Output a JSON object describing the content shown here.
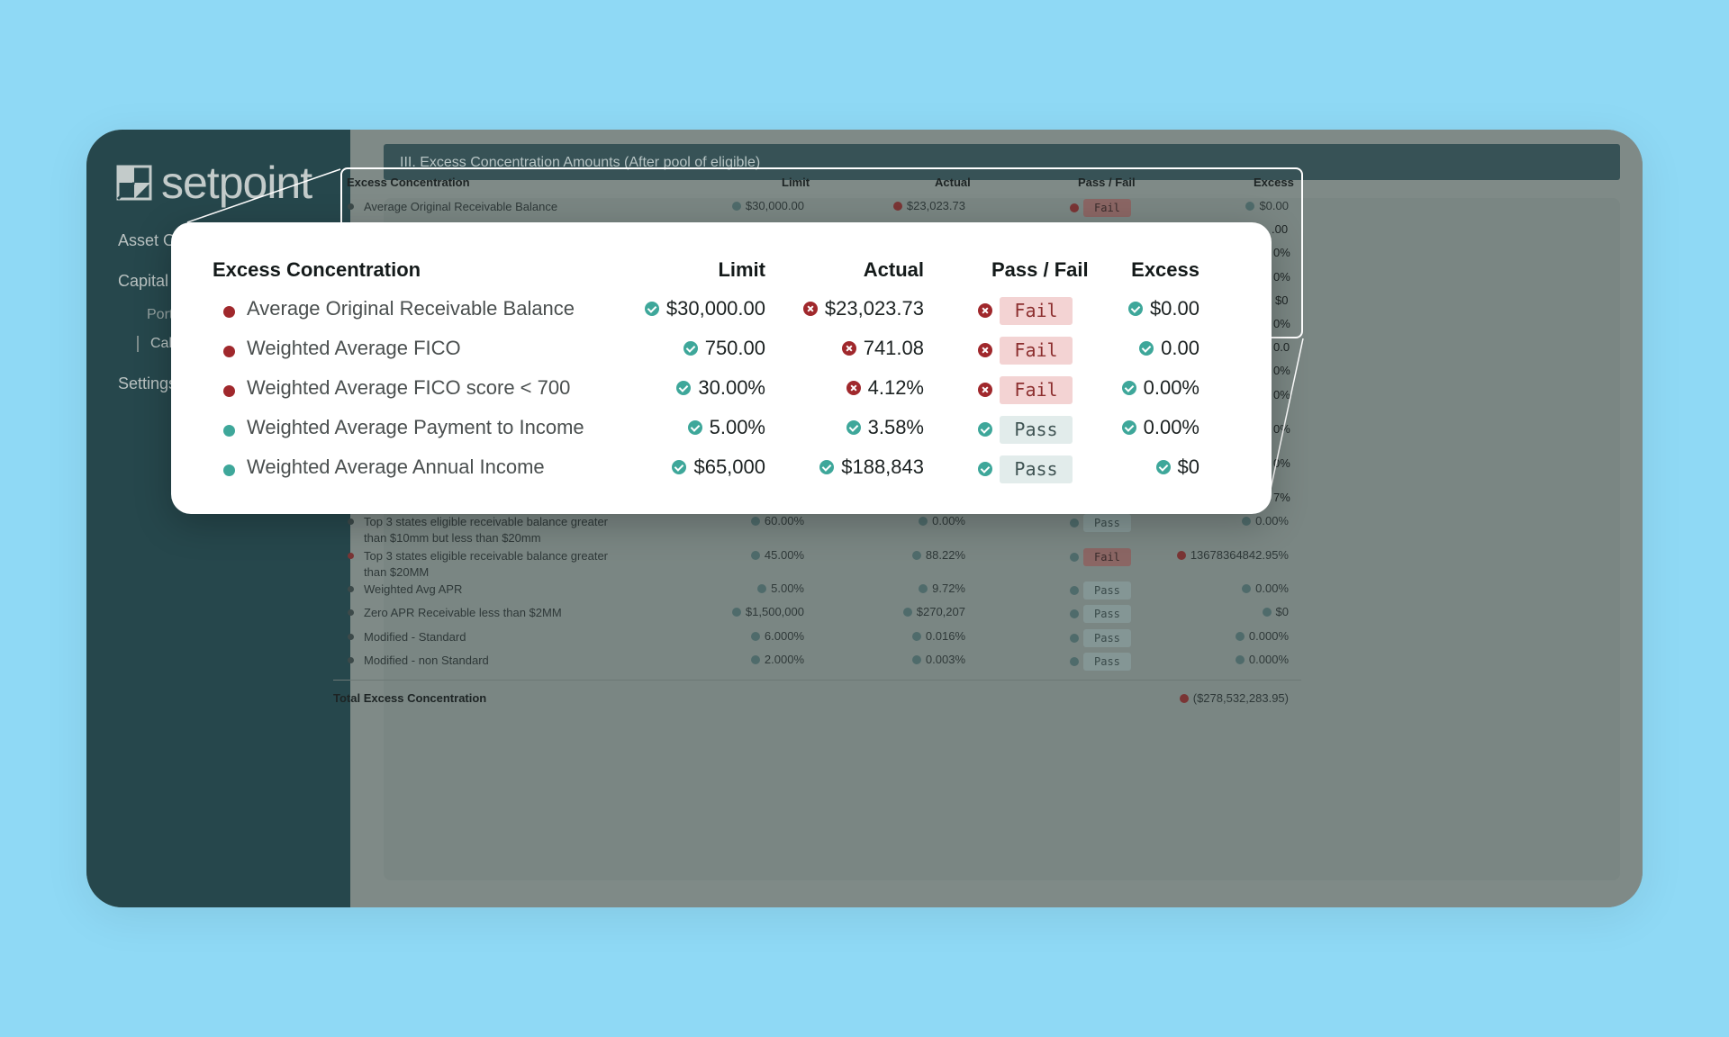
{
  "brand": {
    "name": "setpoint"
  },
  "sidebar": {
    "items": [
      {
        "label": "Asset OS"
      },
      {
        "label": "Capital OS"
      },
      {
        "label": "Portfolio"
      },
      {
        "label": "Calculat"
      },
      {
        "label": "Settings"
      }
    ]
  },
  "section": {
    "title": "III. Excess Concentration Amounts (After pool of eligible)"
  },
  "table": {
    "headers": [
      "Excess Concentration",
      "Limit",
      "Actual",
      "Pass / Fail",
      "Excess"
    ],
    "background_rows": [
      {
        "name": "Average Original Receivable Balance",
        "limit": "$30,000.00",
        "limit_status": "pass",
        "actual": "$23,023.73",
        "actual_status": "fail",
        "result": "Fail",
        "excess": "$0.00",
        "excess_status": "pass"
      },
      {
        "name": "Top 3 states eligible receivable balance greater than $10mm but less than $20mm",
        "limit": "60.00%",
        "limit_status": "pass",
        "actual": "0.00%",
        "actual_status": "pass",
        "result": "Pass",
        "excess": "0.00%",
        "excess_status": "pass"
      },
      {
        "name": "Top 3 states eligible receivable balance greater than $20MM",
        "limit": "45.00%",
        "limit_status": "pass",
        "actual": "88.22%",
        "actual_status": "pass",
        "result": "Fail",
        "excess": "13678364842.95%",
        "excess_status": "fail"
      },
      {
        "name": "Weighted Avg APR",
        "limit": "5.00%",
        "limit_status": "pass",
        "actual": "9.72%",
        "actual_status": "pass",
        "result": "Pass",
        "excess": "0.00%",
        "excess_status": "pass"
      },
      {
        "name": "Zero APR Receivable less than $2MM",
        "limit": "$1,500,000",
        "limit_status": "pass",
        "actual": "$270,207",
        "actual_status": "pass",
        "result": "Pass",
        "excess": "$0",
        "excess_status": "pass"
      },
      {
        "name": "Modified - Standard",
        "limit": "6.000%",
        "limit_status": "pass",
        "actual": "0.016%",
        "actual_status": "pass",
        "result": "Pass",
        "excess": "0.000%",
        "excess_status": "pass"
      },
      {
        "name": "Modified - non Standard",
        "limit": "2.000%",
        "limit_status": "pass",
        "actual": "0.003%",
        "actual_status": "pass",
        "result": "Pass",
        "excess": "0.000%",
        "excess_status": "pass"
      }
    ],
    "right_edge_fragments": [
      ".00",
      "0%",
      "0%",
      "$0",
      "0%",
      "0.0",
      "0%",
      "0%",
      "0%",
      "0%",
      "7%"
    ],
    "total": {
      "label": "Total Excess Concentration",
      "value": "($278,532,283.95)"
    }
  },
  "popup": {
    "headers": [
      "Excess Concentration",
      "Limit",
      "Actual",
      "Pass / Fail",
      "Excess"
    ],
    "rows": [
      {
        "name": "Average Original Receivable Balance",
        "dot": "fail",
        "limit": "$30,000.00",
        "limit_status": "pass",
        "actual": "$23,023.73",
        "actual_status": "fail",
        "result_status": "fail",
        "result": "Fail",
        "excess": "$0.00",
        "excess_status": "pass"
      },
      {
        "name": "Weighted Average FICO",
        "dot": "fail",
        "limit": "750.00",
        "limit_status": "pass",
        "actual": "741.08",
        "actual_status": "fail",
        "result_status": "fail",
        "result": "Fail",
        "excess": "0.00",
        "excess_status": "pass"
      },
      {
        "name": "Weighted Average FICO score < 700",
        "dot": "fail",
        "limit": "30.00%",
        "limit_status": "pass",
        "actual": "4.12%",
        "actual_status": "fail",
        "result_status": "fail",
        "result": "Fail",
        "excess": "0.00%",
        "excess_status": "pass"
      },
      {
        "name": "Weighted Average Payment to Income",
        "dot": "pass",
        "limit": "5.00%",
        "limit_status": "pass",
        "actual": "3.58%",
        "actual_status": "pass",
        "result_status": "pass",
        "result": "Pass",
        "excess": "0.00%",
        "excess_status": "pass"
      },
      {
        "name": "Weighted Average Annual Income",
        "dot": "pass",
        "limit": "$65,000",
        "limit_status": "pass",
        "actual": "$188,843",
        "actual_status": "pass",
        "result_status": "pass",
        "result": "Pass",
        "excess": "$0",
        "excess_status": "pass"
      }
    ]
  },
  "colors": {
    "background": "#8fd9f5",
    "sidebar": "#26474c",
    "pass": "#3ea79a",
    "fail": "#a0282c"
  },
  "icons": {
    "pass": "check-circle-icon",
    "fail": "x-circle-icon"
  }
}
